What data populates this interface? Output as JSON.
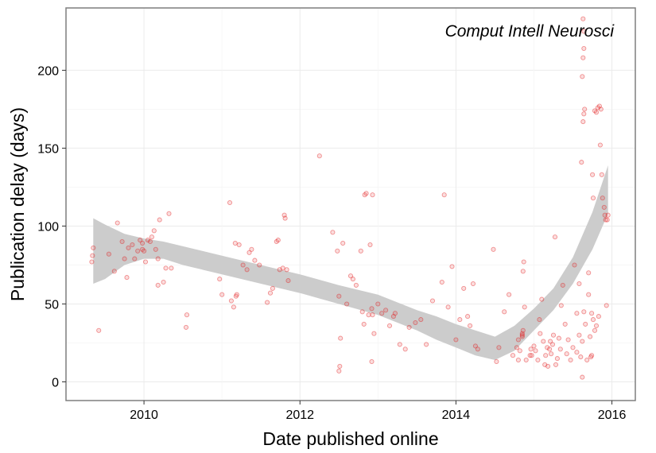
{
  "chart_data": {
    "type": "scatter",
    "title": "",
    "annotation": "Comput Intell Neurosci",
    "xlabel": "Date published online",
    "ylabel": "Publication delay (days)",
    "xlim": [
      2009.0,
      2016.3
    ],
    "ylim": [
      -12,
      240
    ],
    "xticks": [
      2010,
      2012,
      2014,
      2016
    ],
    "xtick_labels": [
      "2010",
      "2012",
      "2014",
      "2016"
    ],
    "yticks": [
      0,
      50,
      100,
      150,
      200
    ],
    "ytick_labels": [
      "0",
      "50",
      "100",
      "150",
      "200"
    ],
    "grid": true,
    "point_color": "#e31a1c",
    "band_color": "#cccccc",
    "points": [
      [
        2009.35,
        86
      ],
      [
        2009.34,
        81
      ],
      [
        2009.33,
        77
      ],
      [
        2009.42,
        33
      ],
      [
        2009.55,
        82
      ],
      [
        2009.62,
        71
      ],
      [
        2009.66,
        102
      ],
      [
        2009.72,
        90
      ],
      [
        2009.75,
        79
      ],
      [
        2009.78,
        67
      ],
      [
        2009.8,
        86
      ],
      [
        2009.85,
        88
      ],
      [
        2009.88,
        79
      ],
      [
        2009.92,
        84
      ],
      [
        2009.95,
        91
      ],
      [
        2009.98,
        89
      ],
      [
        2009.98,
        85
      ],
      [
        2010.0,
        84
      ],
      [
        2010.02,
        77
      ],
      [
        2010.05,
        91
      ],
      [
        2010.08,
        90
      ],
      [
        2010.1,
        93
      ],
      [
        2010.13,
        97
      ],
      [
        2010.15,
        85
      ],
      [
        2010.18,
        79
      ],
      [
        2010.18,
        62
      ],
      [
        2010.2,
        104
      ],
      [
        2010.25,
        64
      ],
      [
        2010.28,
        73
      ],
      [
        2010.32,
        108
      ],
      [
        2010.35,
        73
      ],
      [
        2010.55,
        43
      ],
      [
        2010.54,
        35
      ],
      [
        2010.97,
        66
      ],
      [
        2011.0,
        56
      ],
      [
        2011.1,
        115
      ],
      [
        2011.12,
        52
      ],
      [
        2011.15,
        48
      ],
      [
        2011.18,
        55
      ],
      [
        2011.19,
        56
      ],
      [
        2011.17,
        89
      ],
      [
        2011.22,
        88
      ],
      [
        2011.27,
        75
      ],
      [
        2011.32,
        72
      ],
      [
        2011.35,
        83
      ],
      [
        2011.38,
        85
      ],
      [
        2011.42,
        78
      ],
      [
        2011.48,
        75
      ],
      [
        2011.58,
        51
      ],
      [
        2011.62,
        57
      ],
      [
        2011.65,
        60
      ],
      [
        2011.7,
        90
      ],
      [
        2011.72,
        91
      ],
      [
        2011.74,
        72
      ],
      [
        2011.78,
        73
      ],
      [
        2011.8,
        107
      ],
      [
        2011.81,
        105
      ],
      [
        2011.83,
        72
      ],
      [
        2011.85,
        65
      ],
      [
        2012.25,
        145
      ],
      [
        2012.42,
        96
      ],
      [
        2012.48,
        84
      ],
      [
        2012.5,
        55
      ],
      [
        2012.52,
        28
      ],
      [
        2012.51,
        10
      ],
      [
        2012.5,
        7
      ],
      [
        2012.55,
        89
      ],
      [
        2012.6,
        50
      ],
      [
        2012.65,
        68
      ],
      [
        2012.68,
        66
      ],
      [
        2012.72,
        62
      ],
      [
        2012.78,
        84
      ],
      [
        2012.8,
        45
      ],
      [
        2012.82,
        37
      ],
      [
        2012.83,
        120
      ],
      [
        2012.85,
        121
      ],
      [
        2012.88,
        43
      ],
      [
        2012.9,
        88
      ],
      [
        2012.92,
        47
      ],
      [
        2012.93,
        43
      ],
      [
        2012.93,
        120
      ],
      [
        2012.92,
        13
      ],
      [
        2012.95,
        31
      ],
      [
        2013.0,
        50
      ],
      [
        2013.05,
        44
      ],
      [
        2013.1,
        46
      ],
      [
        2013.15,
        36
      ],
      [
        2013.2,
        42
      ],
      [
        2013.22,
        44
      ],
      [
        2013.28,
        24
      ],
      [
        2013.35,
        21
      ],
      [
        2013.4,
        35
      ],
      [
        2013.48,
        38
      ],
      [
        2013.55,
        40
      ],
      [
        2013.62,
        24
      ],
      [
        2013.7,
        52
      ],
      [
        2013.82,
        64
      ],
      [
        2013.85,
        120
      ],
      [
        2013.9,
        48
      ],
      [
        2013.95,
        74
      ],
      [
        2014.0,
        27
      ],
      [
        2014.05,
        40
      ],
      [
        2014.1,
        60
      ],
      [
        2014.15,
        42
      ],
      [
        2014.18,
        36
      ],
      [
        2014.22,
        63
      ],
      [
        2014.25,
        23
      ],
      [
        2014.28,
        21
      ],
      [
        2014.48,
        85
      ],
      [
        2014.52,
        13
      ],
      [
        2014.55,
        22
      ],
      [
        2014.62,
        45
      ],
      [
        2014.68,
        56
      ],
      [
        2014.73,
        17
      ],
      [
        2014.78,
        22
      ],
      [
        2014.8,
        27
      ],
      [
        2014.8,
        14
      ],
      [
        2014.82,
        20
      ],
      [
        2014.85,
        30
      ],
      [
        2014.85,
        31
      ],
      [
        2014.85,
        29
      ],
      [
        2014.86,
        33
      ],
      [
        2014.86,
        71
      ],
      [
        2014.87,
        77
      ],
      [
        2014.88,
        48
      ],
      [
        2014.9,
        14
      ],
      [
        2014.95,
        17
      ],
      [
        2014.96,
        21
      ],
      [
        2014.97,
        17
      ],
      [
        2015.0,
        23
      ],
      [
        2015.02,
        20
      ],
      [
        2015.05,
        14
      ],
      [
        2015.07,
        40
      ],
      [
        2015.08,
        31
      ],
      [
        2015.1,
        53
      ],
      [
        2015.12,
        26
      ],
      [
        2015.14,
        11
      ],
      [
        2015.15,
        17
      ],
      [
        2015.17,
        22
      ],
      [
        2015.18,
        10
      ],
      [
        2015.2,
        21
      ],
      [
        2015.21,
        26
      ],
      [
        2015.22,
        18
      ],
      [
        2015.24,
        24
      ],
      [
        2015.25,
        30
      ],
      [
        2015.27,
        93
      ],
      [
        2015.28,
        11
      ],
      [
        2015.3,
        15
      ],
      [
        2015.32,
        28
      ],
      [
        2015.34,
        21
      ],
      [
        2015.35,
        49
      ],
      [
        2015.37,
        62
      ],
      [
        2015.4,
        37
      ],
      [
        2015.42,
        18
      ],
      [
        2015.44,
        27
      ],
      [
        2015.47,
        14
      ],
      [
        2015.5,
        22
      ],
      [
        2015.52,
        75
      ],
      [
        2015.55,
        19
      ],
      [
        2015.58,
        30
      ],
      [
        2015.6,
        16
      ],
      [
        2015.62,
        26
      ],
      [
        2015.62,
        3
      ],
      [
        2015.63,
        233
      ],
      [
        2015.64,
        225
      ],
      [
        2015.64,
        214
      ],
      [
        2015.63,
        208
      ],
      [
        2015.62,
        196
      ],
      [
        2015.65,
        175
      ],
      [
        2015.64,
        172
      ],
      [
        2015.63,
        167
      ],
      [
        2015.61,
        141
      ],
      [
        2015.64,
        45
      ],
      [
        2015.66,
        37
      ],
      [
        2015.68,
        14
      ],
      [
        2015.7,
        70
      ],
      [
        2015.7,
        56
      ],
      [
        2015.72,
        29
      ],
      [
        2015.73,
        16
      ],
      [
        2015.74,
        17
      ],
      [
        2015.75,
        133
      ],
      [
        2015.76,
        118
      ],
      [
        2015.78,
        174
      ],
      [
        2015.8,
        173
      ],
      [
        2015.82,
        176
      ],
      [
        2015.84,
        177
      ],
      [
        2015.86,
        175
      ],
      [
        2015.85,
        152
      ],
      [
        2015.87,
        133
      ],
      [
        2015.88,
        118
      ],
      [
        2015.9,
        112
      ],
      [
        2015.91,
        107
      ],
      [
        2015.92,
        104
      ],
      [
        2015.94,
        104
      ],
      [
        2015.95,
        107
      ],
      [
        2015.93,
        49
      ],
      [
        2015.83,
        42
      ],
      [
        2015.8,
        36
      ],
      [
        2015.78,
        33
      ],
      [
        2015.76,
        40
      ],
      [
        2015.74,
        44
      ],
      [
        2015.58,
        63
      ],
      [
        2015.55,
        44
      ]
    ],
    "smooth_band": [
      {
        "x": 2009.35,
        "lower": 63,
        "upper": 105
      },
      {
        "x": 2009.5,
        "lower": 66,
        "upper": 101
      },
      {
        "x": 2009.75,
        "lower": 75,
        "upper": 95
      },
      {
        "x": 2010.0,
        "lower": 79,
        "upper": 92
      },
      {
        "x": 2010.25,
        "lower": 79,
        "upper": 90
      },
      {
        "x": 2010.5,
        "lower": 75,
        "upper": 87
      },
      {
        "x": 2011.0,
        "lower": 69,
        "upper": 81
      },
      {
        "x": 2011.5,
        "lower": 63,
        "upper": 75
      },
      {
        "x": 2012.0,
        "lower": 57,
        "upper": 69
      },
      {
        "x": 2012.5,
        "lower": 50,
        "upper": 62
      },
      {
        "x": 2013.0,
        "lower": 43,
        "upper": 56
      },
      {
        "x": 2013.5,
        "lower": 33,
        "upper": 46
      },
      {
        "x": 2013.75,
        "lower": 27,
        "upper": 42
      },
      {
        "x": 2014.0,
        "lower": 22,
        "upper": 37
      },
      {
        "x": 2014.25,
        "lower": 17,
        "upper": 33
      },
      {
        "x": 2014.5,
        "lower": 14,
        "upper": 29
      },
      {
        "x": 2014.75,
        "lower": 20,
        "upper": 36
      },
      {
        "x": 2015.0,
        "lower": 33,
        "upper": 47
      },
      {
        "x": 2015.25,
        "lower": 46,
        "upper": 60
      },
      {
        "x": 2015.5,
        "lower": 63,
        "upper": 80
      },
      {
        "x": 2015.75,
        "lower": 85,
        "upper": 109
      },
      {
        "x": 2015.95,
        "lower": 108,
        "upper": 139
      }
    ]
  }
}
